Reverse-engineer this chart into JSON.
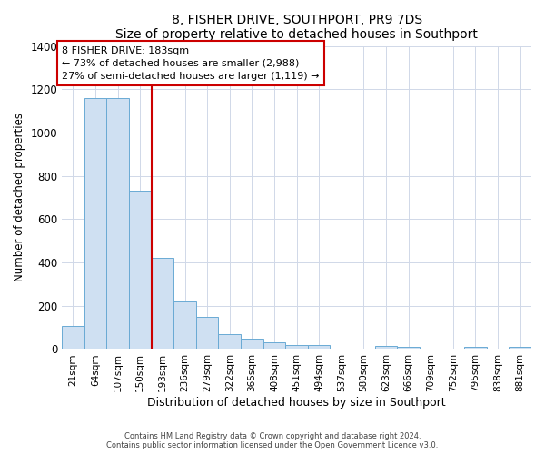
{
  "title": "8, FISHER DRIVE, SOUTHPORT, PR9 7DS",
  "subtitle": "Size of property relative to detached houses in Southport",
  "xlabel": "Distribution of detached houses by size in Southport",
  "ylabel": "Number of detached properties",
  "bar_labels": [
    "21sqm",
    "64sqm",
    "107sqm",
    "150sqm",
    "193sqm",
    "236sqm",
    "279sqm",
    "322sqm",
    "365sqm",
    "408sqm",
    "451sqm",
    "494sqm",
    "537sqm",
    "580sqm",
    "623sqm",
    "666sqm",
    "709sqm",
    "752sqm",
    "795sqm",
    "838sqm",
    "881sqm"
  ],
  "bar_values": [
    105,
    1160,
    1160,
    730,
    420,
    220,
    150,
    70,
    50,
    30,
    20,
    20,
    0,
    0,
    15,
    10,
    0,
    0,
    10,
    0,
    10
  ],
  "bar_color": "#cfe0f2",
  "bar_edge_color": "#6aaad4",
  "vline_color": "#cc0000",
  "vline_index": 3.5,
  "annotation_title": "8 FISHER DRIVE: 183sqm",
  "annotation_line1": "← 73% of detached houses are smaller (2,988)",
  "annotation_line2": "27% of semi-detached houses are larger (1,119) →",
  "annotation_box_edge": "#cc0000",
  "ylim": [
    0,
    1400
  ],
  "yticks": [
    0,
    200,
    400,
    600,
    800,
    1000,
    1200,
    1400
  ],
  "footer1": "Contains HM Land Registry data © Crown copyright and database right 2024.",
  "footer2": "Contains public sector information licensed under the Open Government Licence v3.0.",
  "bg_color": "#ffffff",
  "grid_color": "#d0d8e8"
}
